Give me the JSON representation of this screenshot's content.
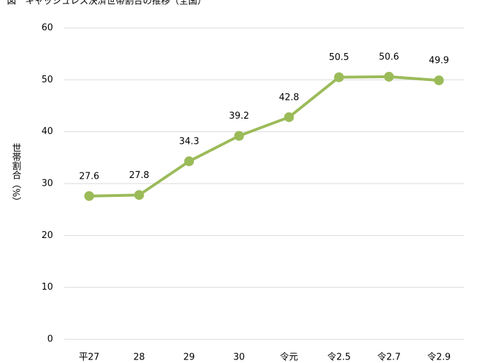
{
  "chart_data": {
    "type": "line",
    "title": "図　キャッシュレス決済世帯割合の推移（全国）",
    "y_label": "世帯割合（%）",
    "categories": [
      "平27",
      "28",
      "29",
      "30",
      "令元",
      "令2.5",
      "令2.7",
      "令2.9"
    ],
    "series": [
      {
        "name": "キャッシュレス決済世帯割合",
        "color": "#9bbb59",
        "values": [
          27.6,
          27.8,
          34.3,
          39.2,
          42.8,
          50.5,
          50.6,
          49.9
        ]
      }
    ],
    "ylim": [
      0,
      60
    ],
    "yticks": [
      0,
      10,
      20,
      30,
      40,
      50,
      60
    ],
    "grid": true
  }
}
